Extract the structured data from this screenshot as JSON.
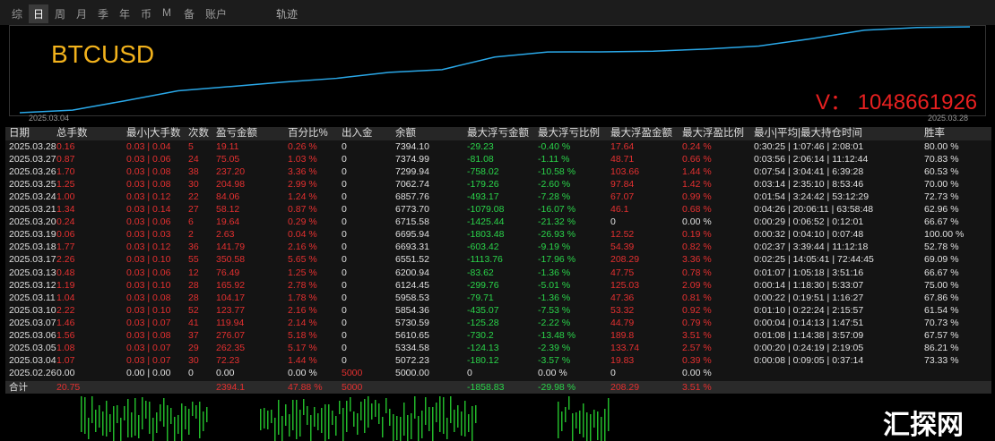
{
  "toolbar": {
    "tabs": [
      "综",
      "日",
      "周",
      "月",
      "季",
      "年",
      "币",
      "M",
      "备",
      "账户"
    ],
    "active_tab": 1,
    "right_label": "轨迹"
  },
  "chart": {
    "symbol": "BTCUSD",
    "account": "V： 1048661926",
    "start_date": "2025.03.04",
    "end_date": "2025.03.28"
  },
  "table": {
    "header": [
      "日期",
      "总手数",
      "最小|大手数",
      "次数",
      "盈亏金额",
      "百分比%",
      "出入金",
      "余额",
      "最大浮亏金额",
      "最大浮亏比例",
      "最大浮盈金额",
      "最大浮盈比例",
      "最小|平均|最大持仓时间",
      "胜率"
    ],
    "rows": [
      [
        "2025.03.28",
        "0.16",
        "0.03 | 0.04",
        "5",
        "19.11",
        "0.26 %",
        "0",
        "7394.10",
        "-29.23",
        "-0.40 %",
        "17.64",
        "0.24 %",
        "0:30:25 | 1:07:46 | 2:08:01",
        "80.00 %"
      ],
      [
        "2025.03.27",
        "0.87",
        "0.03 | 0.06",
        "24",
        "75.05",
        "1.03 %",
        "0",
        "7374.99",
        "-81.08",
        "-1.11 %",
        "48.71",
        "0.66 %",
        "0:03:56 | 2:06:14 | 11:12:44",
        "70.83 %"
      ],
      [
        "2025.03.26",
        "1.70",
        "0.03 | 0.08",
        "38",
        "237.20",
        "3.36 %",
        "0",
        "7299.94",
        "-758.02",
        "-10.58 %",
        "103.66",
        "1.44 %",
        "0:07:54 | 3:04:41 | 6:39:28",
        "60.53 %"
      ],
      [
        "2025.03.25",
        "1.25",
        "0.03 | 0.08",
        "30",
        "204.98",
        "2.99 %",
        "0",
        "7062.74",
        "-179.26",
        "-2.60 %",
        "97.84",
        "1.42 %",
        "0:03:14 | 2:35:10 | 8:53:46",
        "70.00 %"
      ],
      [
        "2025.03.24",
        "1.00",
        "0.03 | 0.12",
        "22",
        "84.06",
        "1.24 %",
        "0",
        "6857.76",
        "-493.17",
        "-7.28 %",
        "67.07",
        "0.99 %",
        "0:01:54 | 3:24:42 | 53:12:29",
        "72.73 %"
      ],
      [
        "2025.03.21",
        "1.34",
        "0.03 | 0.14",
        "27",
        "58.12",
        "0.87 %",
        "0",
        "6773.70",
        "-1079.08",
        "-16.07 %",
        "46.1",
        "0.68 %",
        "0:04:26 | 20:06:11 | 63:58:48",
        "62.96 %"
      ],
      [
        "2025.03.20",
        "0.24",
        "0.03 | 0.06",
        "6",
        "19.64",
        "0.29 %",
        "0",
        "6715.58",
        "-1425.44",
        "-21.32 %",
        "0",
        "0.00 %",
        "0:00:29 | 0:06:52 | 0:12:01",
        "66.67 %"
      ],
      [
        "2025.03.19",
        "0.06",
        "0.03 | 0.03",
        "2",
        "2.63",
        "0.04 %",
        "0",
        "6695.94",
        "-1803.48",
        "-26.93 %",
        "12.52",
        "0.19 %",
        "0:00:32 | 0:04:10 | 0:07:48",
        "100.00 %"
      ],
      [
        "2025.03.18",
        "1.77",
        "0.03 | 0.12",
        "36",
        "141.79",
        "2.16 %",
        "0",
        "6693.31",
        "-603.42",
        "-9.19 %",
        "54.39",
        "0.82 %",
        "0:02:37 | 3:39:44 | 11:12:18",
        "52.78 %"
      ],
      [
        "2025.03.17",
        "2.26",
        "0.03 | 0.10",
        "55",
        "350.58",
        "5.65 %",
        "0",
        "6551.52",
        "-1113.76",
        "-17.96 %",
        "208.29",
        "3.36 %",
        "0:02:25 | 14:05:41 | 72:44:45",
        "69.09 %"
      ],
      [
        "2025.03.13",
        "0.48",
        "0.03 | 0.06",
        "12",
        "76.49",
        "1.25 %",
        "0",
        "6200.94",
        "-83.62",
        "-1.36 %",
        "47.75",
        "0.78 %",
        "0:01:07 | 1:05:18 | 3:51:16",
        "66.67 %"
      ],
      [
        "2025.03.12",
        "1.19",
        "0.03 | 0.10",
        "28",
        "165.92",
        "2.78 %",
        "0",
        "6124.45",
        "-299.76",
        "-5.01 %",
        "125.03",
        "2.09 %",
        "0:00:14 | 1:18:30 | 5:33:07",
        "75.00 %"
      ],
      [
        "2025.03.11",
        "1.04",
        "0.03 | 0.08",
        "28",
        "104.17",
        "1.78 %",
        "0",
        "5958.53",
        "-79.71",
        "-1.36 %",
        "47.36",
        "0.81 %",
        "0:00:22 | 0:19:51 | 1:16:27",
        "67.86 %"
      ],
      [
        "2025.03.10",
        "2.22",
        "0.03 | 0.10",
        "52",
        "123.77",
        "2.16 %",
        "0",
        "5854.36",
        "-435.07",
        "-7.53 %",
        "53.32",
        "0.92 %",
        "0:01:10 | 0:22:24 | 2:15:57",
        "61.54 %"
      ],
      [
        "2025.03.07",
        "1.46",
        "0.03 | 0.07",
        "41",
        "119.94",
        "2.14 %",
        "0",
        "5730.59",
        "-125.28",
        "-2.22 %",
        "44.79",
        "0.79 %",
        "0:00:04 | 0:14:13 | 1:47:51",
        "70.73 %"
      ],
      [
        "2025.03.06",
        "1.56",
        "0.03 | 0.08",
        "37",
        "276.07",
        "5.18 %",
        "0",
        "5610.65",
        "-730.2",
        "-13.48 %",
        "189.8",
        "3.51 %",
        "0:01:08 | 1:14:38 | 3:57:09",
        "67.57 %"
      ],
      [
        "2025.03.05",
        "1.08",
        "0.03 | 0.07",
        "29",
        "262.35",
        "5.17 %",
        "0",
        "5334.58",
        "-124.13",
        "-2.39 %",
        "133.74",
        "2.57 %",
        "0:00:20 | 0:24:19 | 2:19:05",
        "86.21 %"
      ],
      [
        "2025.03.04",
        "1.07",
        "0.03 | 0.07",
        "30",
        "72.23",
        "1.44 %",
        "0",
        "5072.23",
        "-180.12",
        "-3.57 %",
        "19.83",
        "0.39 %",
        "0:00:08 | 0:09:05 | 0:37:14",
        "73.33 %"
      ],
      [
        "2025.02.26",
        "0.00",
        "0.00 | 0.00",
        "0",
        "0.00",
        "0.00 %",
        "5000",
        "5000.00",
        "0",
        "0.00 %",
        "0",
        "0.00 %",
        null,
        null
      ]
    ],
    "total": [
      "合计",
      "20.75",
      null,
      null,
      "2394.1",
      "47.88 %",
      "5000",
      null,
      "-1858.83",
      "-29.98 %",
      "208.29",
      "3.51 %",
      null,
      null
    ]
  },
  "watermark": "汇探网"
}
